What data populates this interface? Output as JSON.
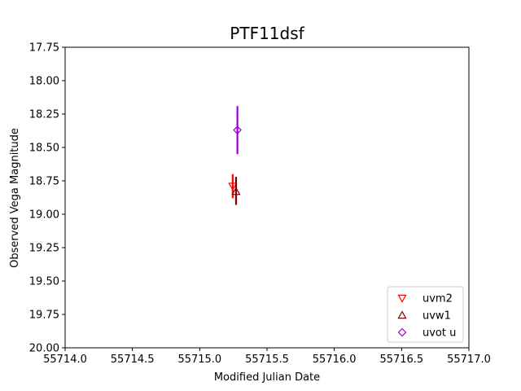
{
  "chart_data": {
    "type": "scatter",
    "title": "PTF11dsf",
    "xlabel": "Modified Julian Date",
    "ylabel": "Observed Vega Magnitude",
    "xlim": [
      55714.0,
      55717.0
    ],
    "ylim": [
      20.0,
      17.75
    ],
    "y_inverted": true,
    "grid": false,
    "legend_position": "lower-right",
    "x_ticks": [
      "55714.0",
      "55714.5",
      "55715.0",
      "55715.5",
      "55716.0",
      "55716.5",
      "55717.0"
    ],
    "x_tick_values": [
      55714.0,
      55714.5,
      55715.0,
      55715.5,
      55716.0,
      55716.5,
      55717.0
    ],
    "y_ticks": [
      "17.75",
      "18.00",
      "18.25",
      "18.50",
      "18.75",
      "19.00",
      "19.25",
      "19.50",
      "19.75",
      "20.00"
    ],
    "y_tick_values": [
      17.75,
      18.0,
      18.25,
      18.5,
      18.75,
      19.0,
      19.25,
      19.5,
      19.75,
      20.0
    ],
    "series": [
      {
        "name": "uvm2",
        "marker": "triangle-down",
        "color": "#ff0000",
        "points": [
          {
            "x": 55715.245,
            "y": 18.79,
            "yerr_low": 18.7,
            "yerr_high": 18.88
          }
        ]
      },
      {
        "name": "uvw1",
        "marker": "triangle-up",
        "color": "#800000",
        "points": [
          {
            "x": 55715.27,
            "y": 18.83,
            "yerr_low": 18.72,
            "yerr_high": 18.93
          }
        ]
      },
      {
        "name": "uvot u",
        "marker": "diamond",
        "color": "#9400d3",
        "points": [
          {
            "x": 55715.28,
            "y": 18.37,
            "yerr_low": 18.19,
            "yerr_high": 18.55
          }
        ]
      }
    ]
  }
}
